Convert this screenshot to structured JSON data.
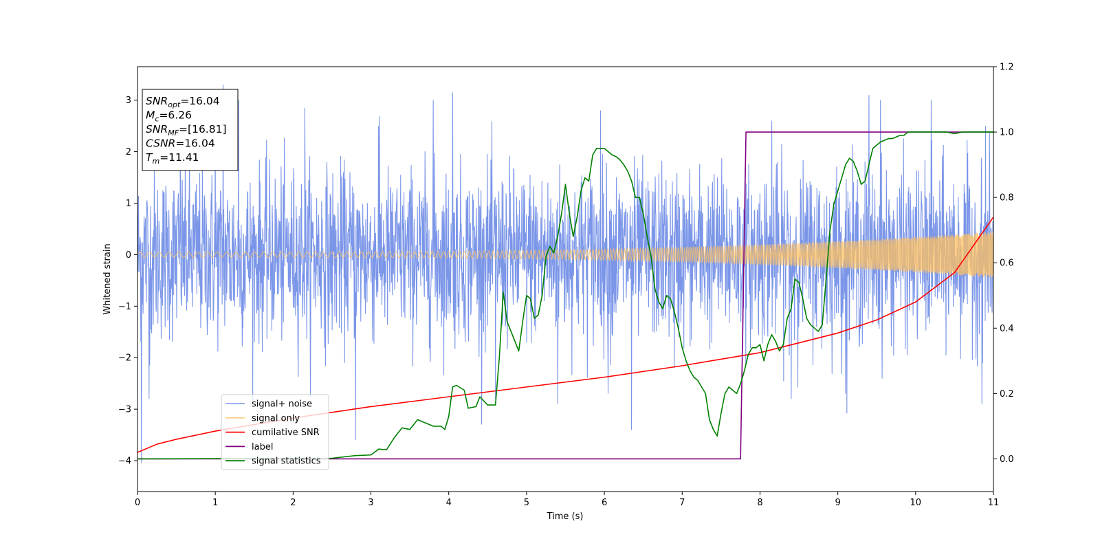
{
  "chart_data": {
    "type": "line",
    "xlabel": "Time (s)",
    "ylabel": "Whitened strain",
    "xlim": [
      0,
      11
    ],
    "ylim_left": [
      -4.6,
      3.65
    ],
    "ylim_right": [
      -0.1,
      1.2
    ],
    "x_ticks": [
      0,
      1,
      2,
      3,
      4,
      5,
      6,
      7,
      8,
      9,
      10,
      11
    ],
    "y_ticks_left": [
      -4,
      -3,
      -2,
      -1,
      0,
      1,
      2,
      3
    ],
    "y_ticks_right": [
      0.0,
      0.2,
      0.4,
      0.6,
      0.8,
      1.0,
      1.2
    ],
    "grid": false,
    "legend_placement": "lower-left",
    "annotation": {
      "lines": [
        {
          "base": "SNR",
          "sub": "opt",
          "value": "=16.04"
        },
        {
          "base": "M",
          "sub": "c",
          "value": "=6.26"
        },
        {
          "base": "SNR",
          "sub": "MF",
          "value": "=[16.81]"
        },
        {
          "base": "CSNR",
          "sub": "",
          "value": "=16.04"
        },
        {
          "base": "T",
          "sub": "m",
          "value": "=11.41"
        }
      ]
    },
    "series": [
      {
        "name": "signal+ noise",
        "axis": "left",
        "color": "#7b96e8",
        "kind": "noise",
        "envelope_typical": 1.4,
        "envelope_peak": 3.3,
        "spikes": [
          [
            0.05,
            -4.05
          ],
          [
            0.15,
            -2.8
          ],
          [
            0.55,
            2.2
          ],
          [
            1.0,
            2.7
          ],
          [
            1.1,
            3.3
          ],
          [
            1.3,
            3.0
          ],
          [
            2.15,
            2.85
          ],
          [
            2.8,
            -3.6
          ],
          [
            3.1,
            2.5
          ],
          [
            3.8,
            3.0
          ],
          [
            4.05,
            3.15
          ],
          [
            4.6,
            -2.8
          ],
          [
            5.4,
            -2.9
          ],
          [
            5.95,
            2.8
          ],
          [
            6.05,
            -2.7
          ],
          [
            6.35,
            -3.4
          ],
          [
            6.9,
            -2.2
          ],
          [
            8.15,
            2.6
          ],
          [
            8.4,
            -2.8
          ],
          [
            9.1,
            -2.7
          ],
          [
            9.4,
            3.1
          ],
          [
            9.55,
            3.0
          ],
          [
            10.2,
            3.0
          ],
          [
            10.85,
            -2.9
          ],
          [
            10.9,
            2.5
          ]
        ]
      },
      {
        "name": "signal only",
        "axis": "left",
        "color": "#ffc060",
        "kind": "chirp",
        "amplitude_start": 0.05,
        "amplitude_end": 0.45
      },
      {
        "name": "cumilative SNR",
        "axis": "right",
        "color": "#ff0000",
        "x": [
          0.0,
          0.25,
          0.5,
          1.0,
          2.0,
          3.0,
          4.0,
          5.0,
          6.0,
          7.0,
          8.0,
          9.0,
          9.5,
          10.0,
          10.5,
          11.0
        ],
        "y": [
          0.02,
          0.045,
          0.06,
          0.085,
          0.125,
          0.16,
          0.19,
          0.22,
          0.25,
          0.285,
          0.325,
          0.385,
          0.425,
          0.48,
          0.57,
          0.74
        ]
      },
      {
        "name": "label",
        "axis": "right",
        "color": "#800080",
        "x": [
          0.0,
          7.75,
          7.82,
          11.0
        ],
        "y": [
          0.0,
          0.0,
          1.0,
          1.0
        ]
      },
      {
        "name": "signal statistics",
        "axis": "right",
        "color": "#008000",
        "x": [
          0.0,
          2.5,
          2.8,
          3.0,
          3.1,
          3.2,
          3.3,
          3.4,
          3.5,
          3.55,
          3.6,
          3.7,
          3.8,
          3.9,
          3.95,
          4.0,
          4.05,
          4.1,
          4.2,
          4.25,
          4.35,
          4.4,
          4.5,
          4.6,
          4.65,
          4.7,
          4.75,
          4.8,
          4.9,
          4.95,
          5.0,
          5.05,
          5.1,
          5.15,
          5.2,
          5.25,
          5.3,
          5.35,
          5.4,
          5.45,
          5.5,
          5.55,
          5.6,
          5.65,
          5.7,
          5.75,
          5.8,
          5.85,
          5.9,
          5.95,
          6.0,
          6.05,
          6.1,
          6.15,
          6.2,
          6.25,
          6.3,
          6.35,
          6.4,
          6.45,
          6.5,
          6.55,
          6.6,
          6.65,
          6.7,
          6.75,
          6.8,
          6.85,
          6.9,
          6.95,
          7.0,
          7.05,
          7.1,
          7.15,
          7.2,
          7.25,
          7.3,
          7.35,
          7.4,
          7.45,
          7.5,
          7.55,
          7.6,
          7.65,
          7.7,
          7.75,
          7.8,
          7.85,
          7.9,
          7.95,
          8.0,
          8.05,
          8.1,
          8.15,
          8.2,
          8.25,
          8.3,
          8.35,
          8.4,
          8.45,
          8.5,
          8.55,
          8.6,
          8.65,
          8.7,
          8.75,
          8.8,
          8.85,
          8.9,
          8.95,
          9.0,
          9.05,
          9.1,
          9.15,
          9.2,
          9.25,
          9.3,
          9.35,
          9.4,
          9.45,
          9.5,
          9.55,
          9.6,
          9.65,
          9.7,
          9.75,
          9.8,
          9.85,
          9.9,
          9.95,
          10.0,
          10.1,
          10.2,
          10.3,
          10.4,
          10.5,
          10.6,
          10.7,
          10.8,
          10.9,
          11.0
        ],
        "y": [
          0.0,
          0.002,
          0.01,
          0.012,
          0.03,
          0.028,
          0.065,
          0.095,
          0.09,
          0.105,
          0.12,
          0.11,
          0.1,
          0.1,
          0.09,
          0.13,
          0.22,
          0.225,
          0.21,
          0.155,
          0.16,
          0.19,
          0.165,
          0.165,
          0.31,
          0.51,
          0.42,
          0.39,
          0.33,
          0.42,
          0.5,
          0.49,
          0.43,
          0.44,
          0.5,
          0.62,
          0.65,
          0.63,
          0.68,
          0.75,
          0.84,
          0.75,
          0.68,
          0.74,
          0.82,
          0.86,
          0.85,
          0.93,
          0.95,
          0.95,
          0.95,
          0.94,
          0.93,
          0.925,
          0.915,
          0.9,
          0.88,
          0.85,
          0.8,
          0.8,
          0.75,
          0.68,
          0.62,
          0.52,
          0.48,
          0.46,
          0.5,
          0.49,
          0.45,
          0.4,
          0.34,
          0.3,
          0.27,
          0.25,
          0.24,
          0.22,
          0.2,
          0.12,
          0.09,
          0.07,
          0.14,
          0.2,
          0.22,
          0.21,
          0.2,
          0.23,
          0.27,
          0.32,
          0.34,
          0.34,
          0.35,
          0.3,
          0.35,
          0.38,
          0.36,
          0.33,
          0.35,
          0.43,
          0.46,
          0.55,
          0.54,
          0.49,
          0.43,
          0.41,
          0.4,
          0.39,
          0.41,
          0.55,
          0.7,
          0.78,
          0.82,
          0.86,
          0.9,
          0.92,
          0.91,
          0.88,
          0.84,
          0.85,
          0.9,
          0.95,
          0.96,
          0.97,
          0.975,
          0.98,
          0.98,
          0.985,
          0.99,
          0.99,
          1.0,
          1.0,
          1.0,
          1.0,
          1.0,
          1.0,
          1.0,
          0.995,
          1.0,
          1.0,
          1.0,
          1.0,
          1.0
        ]
      }
    ]
  }
}
